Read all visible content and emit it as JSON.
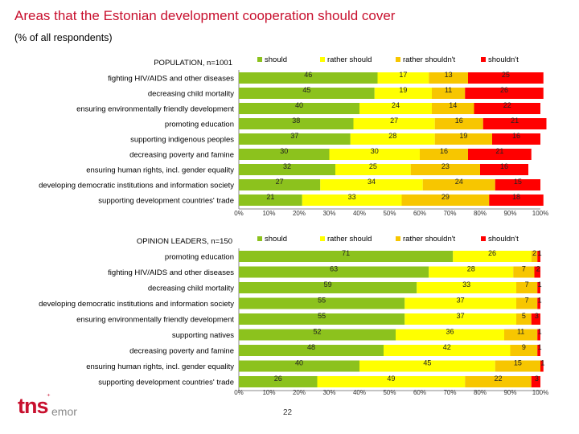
{
  "title": "Areas that the Estonian development cooperation should cover",
  "subtitle": "(% of all respondents)",
  "page_number": "22",
  "logo": {
    "brand": "tns",
    "suffix": "emor"
  },
  "colors": {
    "should": "#8cc21d",
    "rather_should": "#ffff00",
    "rather_shouldnt": "#f7c600",
    "shouldnt": "#ff0000"
  },
  "chart_data": [
    {
      "type": "bar",
      "orientation": "horizontal",
      "stacked": true,
      "title": "POPULATION, n=1001",
      "legend": [
        "should",
        "rather should",
        "rather shouldn't",
        "shouldn't"
      ],
      "legend_position": "top",
      "xlim": [
        0,
        100
      ],
      "x_ticks": [
        "0%",
        "10%",
        "20%",
        "30%",
        "40%",
        "50%",
        "60%",
        "70%",
        "80%",
        "90%",
        "100%"
      ],
      "categories": [
        "fighting HIV/AIDS and other diseases",
        "decreasing child mortality",
        "ensuring environmentally friendly development",
        "promoting education",
        "supporting indigenous peoples",
        "decreasing poverty and famine",
        "ensuring human rights, incl. gender equality",
        "developing democratic institutions and information society",
        "supporting development countries' trade"
      ],
      "series": [
        {
          "name": "should",
          "values": [
            46,
            45,
            40,
            38,
            37,
            30,
            32,
            27,
            21
          ]
        },
        {
          "name": "rather should",
          "values": [
            17,
            19,
            24,
            27,
            28,
            30,
            25,
            34,
            33
          ]
        },
        {
          "name": "rather shouldn't",
          "values": [
            13,
            11,
            14,
            16,
            19,
            16,
            23,
            24,
            29
          ]
        },
        {
          "name": "shouldn't",
          "values": [
            25,
            26,
            22,
            21,
            16,
            21,
            16,
            15,
            18
          ]
        }
      ]
    },
    {
      "type": "bar",
      "orientation": "horizontal",
      "stacked": true,
      "title": "OPINION LEADERS, n=150",
      "legend": [
        "should",
        "rather should",
        "rather shouldn't",
        "shouldn't"
      ],
      "legend_position": "top",
      "xlim": [
        0,
        100
      ],
      "x_ticks": [
        "0%",
        "10%",
        "20%",
        "30%",
        "40%",
        "50%",
        "60%",
        "70%",
        "80%",
        "90%",
        "100%"
      ],
      "categories": [
        "promoting education",
        "fighting HIV/AIDS and other diseases",
        "decreasing child mortality",
        "developing democratic institutions and information society",
        "ensuring environmentally friendly development",
        "supporting natives",
        "decreasing poverty and famine",
        "ensuring human rights, incl. gender equality",
        "supporting development countries' trade"
      ],
      "series": [
        {
          "name": "should",
          "values": [
            71,
            63,
            59,
            55,
            55,
            52,
            48,
            40,
            26
          ]
        },
        {
          "name": "rather should",
          "values": [
            26,
            28,
            33,
            37,
            37,
            36,
            42,
            45,
            49
          ]
        },
        {
          "name": "rather shouldn't",
          "values": [
            2,
            7,
            7,
            7,
            5,
            11,
            9,
            15,
            22
          ]
        },
        {
          "name": "shouldn't",
          "values": [
            1,
            2,
            1,
            1,
            3,
            1,
            1,
            1,
            3
          ]
        }
      ]
    }
  ]
}
